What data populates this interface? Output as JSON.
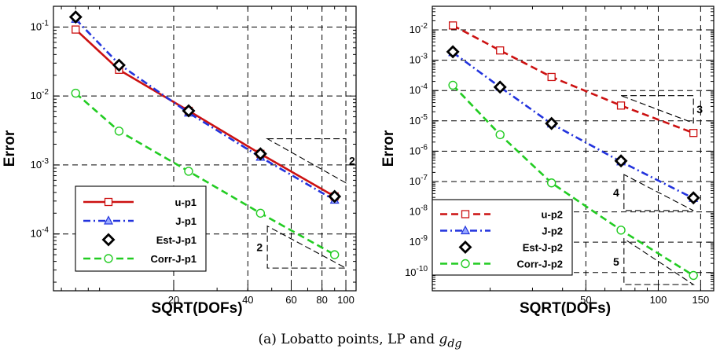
{
  "caption": {
    "prefix": "(a) Lobatto points, LP and ",
    "math_base": "g",
    "math_sub": "dg"
  },
  "chart_data": [
    {
      "type": "line",
      "xlabel": "SQRT(DOFs)",
      "ylabel": "Error",
      "xscale": "log",
      "yscale": "log",
      "xlim": [
        6.5,
        110
      ],
      "ylim": [
        1.5e-05,
        0.2
      ],
      "xticks": [
        {
          "value": 20,
          "label": "20"
        },
        {
          "value": 40,
          "label": "40"
        },
        {
          "value": 60,
          "label": "60"
        },
        {
          "value": 80,
          "label": "80"
        },
        {
          "value": 100,
          "label": "100"
        }
      ],
      "yticks": [
        {
          "value": 0.1,
          "base": "10",
          "exp": "-1"
        },
        {
          "value": 0.01,
          "base": "10",
          "exp": "-2"
        },
        {
          "value": 0.001,
          "base": "10",
          "exp": "-3"
        },
        {
          "value": 0.0001,
          "base": "10",
          "exp": "-4"
        }
      ],
      "grid": true,
      "legend_position": "bottom-left",
      "series": [
        {
          "name": "u-p1",
          "color": "#cc1111",
          "dash": "solid",
          "marker": "square",
          "x": [
            8,
            12,
            23,
            45,
            90
          ],
          "y": [
            0.092,
            0.024,
            0.0061,
            0.00145,
            0.00035
          ]
        },
        {
          "name": "J-p1",
          "color": "#2233dd",
          "dash": "dashdot",
          "marker": "triangle",
          "x": [
            8,
            12,
            23,
            45,
            90
          ],
          "y": [
            0.13,
            0.029,
            0.0057,
            0.0013,
            0.00031
          ]
        },
        {
          "name": "Est-J-p1",
          "color": "#000000",
          "dash": "none",
          "marker": "diamond",
          "x": [
            8,
            12,
            23,
            45,
            90
          ],
          "y": [
            0.14,
            0.028,
            0.0061,
            0.00145,
            0.00035
          ]
        },
        {
          "name": "Corr-J-p1",
          "color": "#22cc22",
          "dash": "dashed",
          "marker": "circle",
          "x": [
            8,
            12,
            23,
            45,
            90
          ],
          "y": [
            0.011,
            0.0031,
            0.00081,
            0.0002,
            5e-05
          ]
        }
      ],
      "slope_triangles": [
        {
          "label": "2",
          "orientation": "upper",
          "x": [
            48,
            100
          ],
          "y": [
            0.00055,
            0.0024
          ]
        },
        {
          "label": "2",
          "orientation": "lower",
          "x": [
            48,
            100
          ],
          "y": [
            3.2e-05,
            0.00013
          ]
        }
      ]
    },
    {
      "type": "line",
      "xlabel": "SQRT(DOFs)",
      "ylabel": "Error",
      "xscale": "log",
      "yscale": "log",
      "xlim": [
        11.5,
        170
      ],
      "ylim": [
        2.5e-11,
        0.06
      ],
      "xticks": [
        {
          "value": 50,
          "label": "50"
        },
        {
          "value": 100,
          "label": "100"
        },
        {
          "value": 150,
          "label": "150"
        }
      ],
      "yticks": [
        {
          "value": 0.01,
          "base": "10",
          "exp": "-2"
        },
        {
          "value": 0.001,
          "base": "10",
          "exp": "-3"
        },
        {
          "value": 0.0001,
          "base": "10",
          "exp": "-4"
        },
        {
          "value": 1e-05,
          "base": "10",
          "exp": "-5"
        },
        {
          "value": 1e-06,
          "base": "10",
          "exp": "-6"
        },
        {
          "value": 1e-07,
          "base": "10",
          "exp": "-7"
        },
        {
          "value": 1e-08,
          "base": "10",
          "exp": "-8"
        },
        {
          "value": 1e-09,
          "base": "10",
          "exp": "-9"
        },
        {
          "value": 1e-10,
          "base": "10",
          "exp": "-10"
        }
      ],
      "grid": true,
      "legend_position": "bottom-left",
      "series": [
        {
          "name": "u-p2",
          "color": "#cc1111",
          "dash": "dashed",
          "marker": "square",
          "x": [
            14,
            22,
            36,
            70,
            140
          ],
          "y": [
            0.014,
            0.0021,
            0.00028,
            3.2e-05,
            4e-06
          ]
        },
        {
          "name": "J-p2",
          "color": "#2233dd",
          "dash": "dashdot",
          "marker": "triangle",
          "x": [
            14,
            22,
            36,
            70,
            140
          ],
          "y": [
            0.0018,
            0.00013,
            8e-06,
            4.5e-07,
            2.8e-08
          ]
        },
        {
          "name": "Est-J-p2",
          "color": "#000000",
          "dash": "none",
          "marker": "diamond",
          "x": [
            14,
            22,
            36,
            70,
            140
          ],
          "y": [
            0.0019,
            0.00013,
            8.2e-06,
            4.8e-07,
            2.9e-08
          ]
        },
        {
          "name": "Corr-J-p2",
          "color": "#22cc22",
          "dash": "dashed",
          "marker": "circle",
          "x": [
            14,
            22,
            36,
            70,
            140
          ],
          "y": [
            0.00015,
            3.5e-06,
            9e-08,
            2.5e-09,
            8e-11
          ]
        }
      ],
      "slope_triangles": [
        {
          "label": "3",
          "orientation": "upper",
          "x": [
            70,
            140
          ],
          "y": [
            8.5e-06,
            6.8e-05
          ]
        },
        {
          "label": "4",
          "orientation": "lower",
          "x": [
            72,
            140
          ],
          "y": [
            1.1e-08,
            1.7e-07
          ]
        },
        {
          "label": "5",
          "orientation": "lower",
          "x": [
            72,
            140
          ],
          "y": [
            4e-11,
            1.3e-09
          ]
        }
      ]
    }
  ]
}
